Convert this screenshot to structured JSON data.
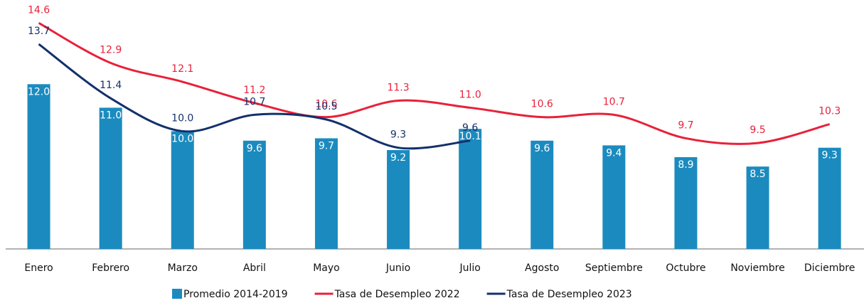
{
  "chart_data": {
    "type": "bar_line",
    "categories": [
      "Enero",
      "Febrero",
      "Marzo",
      "Abril",
      "Mayo",
      "Junio",
      "Julio",
      "Agosto",
      "Septiembre",
      "Octubre",
      "Noviembre",
      "Diciembre"
    ],
    "ylim": [
      5,
      15.5
    ],
    "series": [
      {
        "name": "Promedio 2014-2019",
        "type": "bar",
        "color": "#1b8bbf",
        "values": [
          12.0,
          11.0,
          10.0,
          9.6,
          9.7,
          9.2,
          10.1,
          9.6,
          9.4,
          8.9,
          8.5,
          9.3
        ],
        "value_labels": [
          "12.0",
          "11.0",
          "10.0",
          "9.6",
          "9.7",
          "9.2",
          "10.1",
          "9.6",
          "9.4",
          "8.9",
          "8.5",
          "9.3"
        ]
      },
      {
        "name": "Tasa de Desempleo 2022",
        "type": "line",
        "color": "#e8213a",
        "values": [
          14.6,
          12.9,
          12.1,
          11.2,
          10.6,
          11.3,
          11.0,
          10.6,
          10.7,
          9.7,
          9.5,
          10.3
        ],
        "value_labels": [
          "14.6",
          "12.9",
          "12.1",
          "11.2",
          "10.6",
          "11.3",
          "11.0",
          "10.6",
          "10.7",
          "9.7",
          "9.5",
          "10.3"
        ]
      },
      {
        "name": "Tasa de Desempleo 2023",
        "type": "line",
        "color": "#13306b",
        "values": [
          13.7,
          11.4,
          10.0,
          10.7,
          10.5,
          9.3,
          9.6,
          null,
          null,
          null,
          null,
          null
        ],
        "value_labels": [
          "13.7",
          "11.4",
          "10.0",
          "10.7",
          "10.5",
          "9.3",
          "9.6",
          null,
          null,
          null,
          null,
          null
        ]
      }
    ]
  }
}
